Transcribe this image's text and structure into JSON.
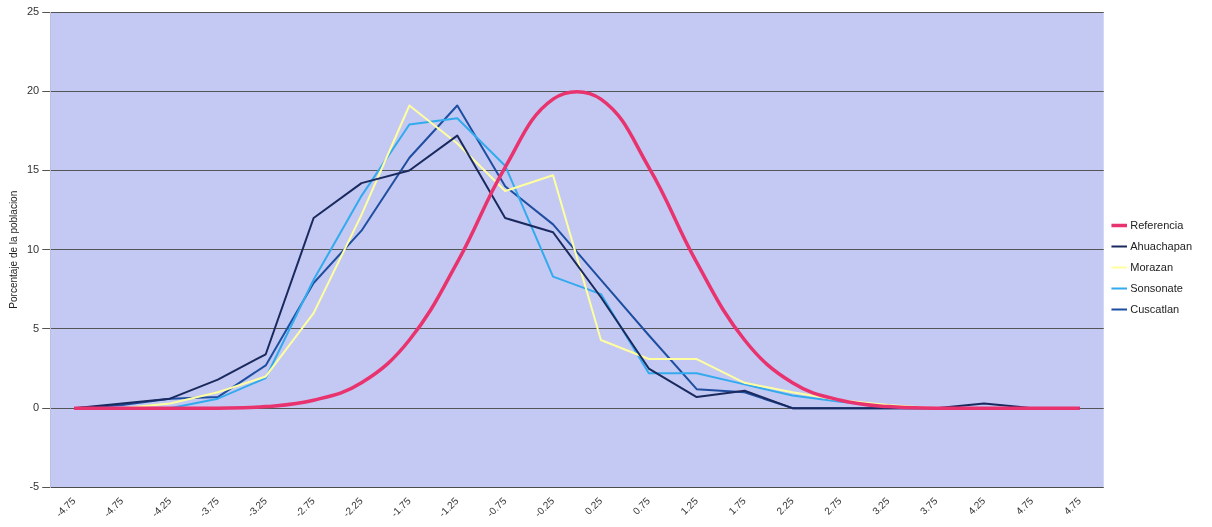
{
  "chart_data": {
    "type": "line",
    "ylabel": "Porcentaje de la poblacion",
    "categories": [
      "-4.75",
      "-4.75",
      "-4.25",
      "-3.75",
      "-3.25",
      "-2.75",
      "-2.25",
      "-1.75",
      "-1.25",
      "-0.75",
      "-0.25",
      "0.25",
      "0.75",
      "1.25",
      "1.75",
      "2.25",
      "2.75",
      "3.25",
      "3.75",
      "4.25",
      "4.75",
      "4.75"
    ],
    "series": [
      {
        "name": "Referencia",
        "color": "#e8336f",
        "values": [
          0,
          0,
          0,
          0,
          0.1,
          0.5,
          1.6,
          4.3,
          9.2,
          15.2,
          19.5,
          19.5,
          15.2,
          9.2,
          4.3,
          1.6,
          0.5,
          0.1,
          0,
          0,
          0,
          0
        ]
      },
      {
        "name": "Ahuachapan",
        "color": "#1a2a5e",
        "values": [
          0,
          0.3,
          0.6,
          1.8,
          3.4,
          12.0,
          14.2,
          15.0,
          17.2,
          12.0,
          11.1,
          7.0,
          2.5,
          0.7,
          1.1,
          0,
          0,
          0,
          0,
          0.3,
          0,
          0
        ]
      },
      {
        "name": "Morazan",
        "color": "#ffffa0",
        "values": [
          0,
          0,
          0.3,
          1.0,
          2.0,
          6.0,
          12.2,
          19.1,
          16.7,
          13.7,
          14.7,
          4.3,
          3.1,
          3.1,
          1.6,
          1.0,
          0.5,
          0.2,
          0,
          0,
          null,
          null
        ]
      },
      {
        "name": "Sonsonate",
        "color": "#33aaee",
        "values": [
          0,
          0,
          0,
          0.6,
          1.9,
          8.1,
          13.4,
          17.9,
          18.3,
          15.3,
          8.3,
          7.2,
          2.2,
          2.2,
          1.5,
          0.8,
          0.4,
          0.1,
          null,
          null,
          null,
          null
        ]
      },
      {
        "name": "Cuscatlan",
        "color": "#1f4ea0",
        "values": [
          0,
          0.2,
          0.6,
          0.7,
          2.7,
          7.9,
          11.2,
          15.8,
          19.1,
          14.0,
          11.6,
          8.1,
          4.6,
          1.2,
          1.0,
          0,
          0,
          0,
          0,
          0,
          0,
          0
        ]
      }
    ],
    "ylim": [
      -5,
      25
    ],
    "yticks": [
      -5,
      0,
      5,
      10,
      15,
      20,
      25
    ],
    "grid": "y",
    "legend": "right",
    "marker": "none",
    "line_style": "solid"
  }
}
